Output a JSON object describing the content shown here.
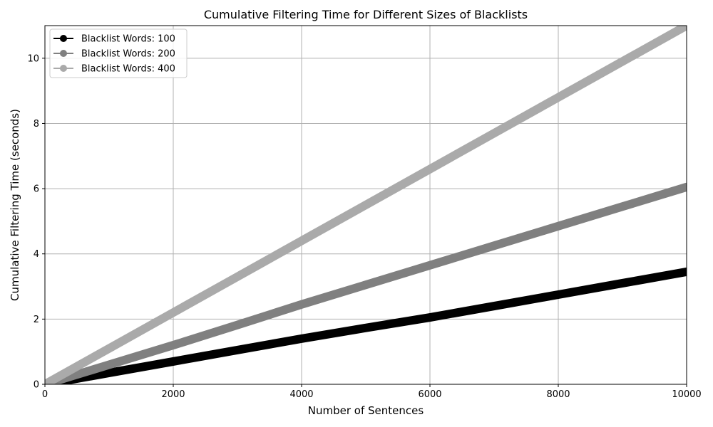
{
  "chart_data": {
    "type": "line",
    "title": "Cumulative Filtering Time for Different Sizes of Blacklists",
    "xlabel": "Number of Sentences",
    "ylabel": "Cumulative Filtering Time (seconds)",
    "xlim": [
      0,
      10000
    ],
    "ylim": [
      0,
      11
    ],
    "xticks": [
      0,
      2000,
      4000,
      6000,
      8000,
      10000
    ],
    "yticks": [
      0,
      2,
      4,
      6,
      8,
      10
    ],
    "grid": true,
    "legend_position": "top-left",
    "series": [
      {
        "name": "Blacklist Words: 100",
        "color": "#000000",
        "x": [
          0,
          1000,
          2000,
          3000,
          4000,
          5000,
          6000,
          7000,
          8000,
          9000,
          10000
        ],
        "y": [
          0,
          0.35,
          0.7,
          1.05,
          1.4,
          1.73,
          2.05,
          2.4,
          2.75,
          3.1,
          3.45
        ]
      },
      {
        "name": "Blacklist Words: 200",
        "color": "#808080",
        "x": [
          0,
          1000,
          2000,
          3000,
          4000,
          5000,
          6000,
          7000,
          8000,
          9000,
          10000
        ],
        "y": [
          0,
          0.6,
          1.2,
          1.82,
          2.45,
          3.05,
          3.65,
          4.25,
          4.85,
          5.45,
          6.05
        ]
      },
      {
        "name": "Blacklist Words: 400",
        "color": "#aaaaaa",
        "x": [
          0,
          1000,
          2000,
          3000,
          4000,
          5000,
          6000,
          7000,
          8000,
          9000,
          10000
        ],
        "y": [
          0,
          1.1,
          2.2,
          3.3,
          4.4,
          5.5,
          6.6,
          7.7,
          8.8,
          9.9,
          11.0
        ]
      }
    ]
  }
}
